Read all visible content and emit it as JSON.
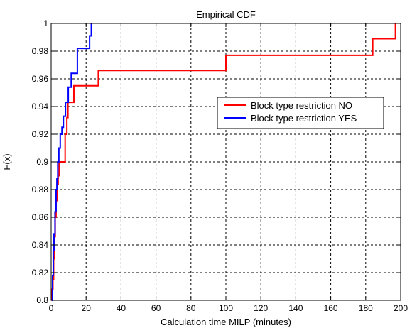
{
  "chart_data": {
    "type": "line",
    "title": "Empirical CDF",
    "xlabel": "Calculation time MILP (minutes)",
    "ylabel": "F(x)",
    "xlim": [
      0,
      200
    ],
    "ylim": [
      0.8,
      1.0
    ],
    "xticks": [
      0,
      20,
      40,
      60,
      80,
      100,
      120,
      140,
      160,
      180,
      200
    ],
    "yticks": [
      0.8,
      0.82,
      0.84,
      0.86,
      0.88,
      0.9,
      0.92,
      0.94,
      0.96,
      0.98,
      1.0
    ],
    "xtick_labels": [
      "0",
      "20",
      "40",
      "60",
      "80",
      "100",
      "120",
      "140",
      "160",
      "180",
      "200"
    ],
    "ytick_labels": [
      "0.8",
      "0.82",
      "0.84",
      "0.86",
      "0.88",
      "0.9",
      "0.92",
      "0.94",
      "0.96",
      "0.98",
      "1"
    ],
    "grid": true,
    "legend_position": "center-right",
    "series": [
      {
        "name": "Block type restriction NO",
        "color": "#ff0000",
        "step": true,
        "points": [
          [
            0.3,
            0.8
          ],
          [
            0.6,
            0.808
          ],
          [
            1.0,
            0.815
          ],
          [
            1.4,
            0.83
          ],
          [
            1.8,
            0.846
          ],
          [
            2.3,
            0.86
          ],
          [
            2.8,
            0.872
          ],
          [
            3.4,
            0.884
          ],
          [
            4.0,
            0.89
          ],
          [
            4.6,
            0.9
          ],
          [
            8.0,
            0.92
          ],
          [
            9.0,
            0.932
          ],
          [
            9.6,
            0.943
          ],
          [
            13.0,
            0.955
          ],
          [
            27.0,
            0.966
          ],
          [
            100.0,
            0.977
          ],
          [
            184.0,
            0.989
          ],
          [
            197.0,
            1.0
          ]
        ]
      },
      {
        "name": "Block type restriction YES",
        "color": "#0000ff",
        "step": true,
        "points": [
          [
            0.3,
            0.8
          ],
          [
            0.8,
            0.818
          ],
          [
            1.2,
            0.836
          ],
          [
            1.6,
            0.848
          ],
          [
            2.2,
            0.864
          ],
          [
            2.8,
            0.88
          ],
          [
            3.3,
            0.888
          ],
          [
            3.8,
            0.9
          ],
          [
            4.4,
            0.91
          ],
          [
            5.2,
            0.92
          ],
          [
            6.2,
            0.925
          ],
          [
            7.0,
            0.933
          ],
          [
            8.2,
            0.943
          ],
          [
            9.8,
            0.954
          ],
          [
            11.5,
            0.964
          ],
          [
            15.0,
            0.982
          ],
          [
            22.0,
            0.991
          ],
          [
            23.0,
            1.0
          ]
        ]
      }
    ]
  }
}
